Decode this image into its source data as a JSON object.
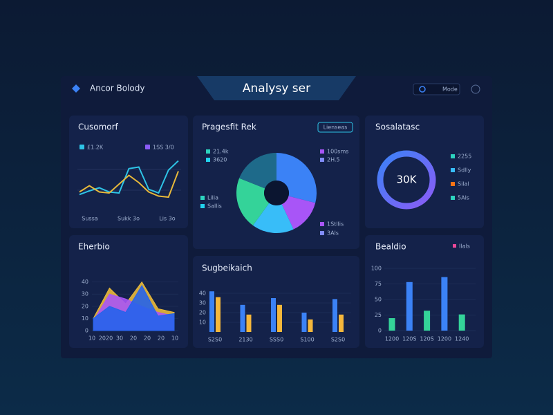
{
  "header": {
    "brand": "Ancor Bolody",
    "title": "Analysy ser",
    "toggle": "Mode"
  },
  "line_panel": {
    "title": "Cusomorf",
    "ylim": [
      0,
      100
    ],
    "series": [
      {
        "name": "£1.2K",
        "color": "#2ec4e6",
        "marker_color": "#2ec4e6",
        "values": [
          25,
          32,
          38,
          30,
          28,
          75,
          78,
          35,
          28,
          72,
          90
        ]
      },
      {
        "name": "1SS 3/0",
        "color": "#e8b93a",
        "marker_color": "#8b5cf6",
        "values": [
          30,
          42,
          30,
          28,
          45,
          62,
          48,
          30,
          22,
          20,
          70
        ]
      }
    ],
    "x_labels": [
      "Sussa",
      "Sukk 3o",
      "Lis 3o"
    ]
  },
  "pie_panel": {
    "title": "Pragesfit Rek",
    "button": "Lienseas",
    "slices": [
      {
        "color": "#3b82f6",
        "value": 29
      },
      {
        "color": "#a855f7",
        "value": 14
      },
      {
        "color": "#38bdf8",
        "value": 17
      },
      {
        "color": "#34d399",
        "value": 21
      },
      {
        "color": "#1e6a8a",
        "value": 19
      }
    ],
    "legend_left": [
      {
        "label": "21.4k",
        "color": "#2dd4bf"
      },
      {
        "label": "3620",
        "color": "#22d3ee"
      },
      {
        "label": "Lilia",
        "color": "#2dd4bf"
      },
      {
        "label": "Sallis",
        "color": "#22d3ee"
      }
    ],
    "legend_right": [
      {
        "label": "100sms",
        "color": "#a855f7"
      },
      {
        "label": "2H.5",
        "color": "#818cf8"
      },
      {
        "label": "1Stllis",
        "color": "#a855f7"
      },
      {
        "label": "3Als",
        "color": "#818cf8"
      }
    ]
  },
  "kpi_panel": {
    "title": "Sosalatasc",
    "value": "30K",
    "legend": [
      {
        "label": "2255",
        "color": "#2dd4bf"
      },
      {
        "label": "Sdlly",
        "color": "#38bdf8"
      },
      {
        "label": "Silal",
        "color": "#f97316"
      },
      {
        "label": "5Als",
        "color": "#2dd4bf"
      }
    ]
  },
  "area_panel": {
    "title": "Eherbio",
    "ylim": [
      0,
      50
    ],
    "yticks": [
      0,
      10,
      20,
      30,
      40
    ],
    "x_labels": [
      "10",
      "2020",
      "30",
      "20",
      "20",
      "20",
      "10"
    ],
    "series": [
      {
        "color": "#e8b93a",
        "values": [
          10,
          35,
          22,
          40,
          18,
          15
        ]
      },
      {
        "color": "#a855f7",
        "values": [
          8,
          30,
          26,
          20,
          15,
          12
        ]
      },
      {
        "color": "#2563eb",
        "values": [
          10,
          20,
          15,
          37,
          12,
          14
        ]
      }
    ]
  },
  "group_panel": {
    "title": "Sugbeikaich",
    "ylim": [
      0,
      50
    ],
    "yticks": [
      10,
      20,
      30,
      40
    ],
    "categories": [
      "S2S0",
      "2130",
      "SSS0",
      "S100",
      "S2S0"
    ],
    "series": [
      {
        "color": "#3b82f6",
        "values": [
          42,
          28,
          35,
          20,
          34
        ]
      },
      {
        "color": "#f5b73b",
        "values": [
          36,
          18,
          28,
          13,
          18
        ]
      }
    ]
  },
  "bar_panel": {
    "title": "Bealdio",
    "legend": {
      "label": "Ilals",
      "color": "#ec4899"
    },
    "ylim": [
      0,
      100
    ],
    "yticks": [
      0,
      25,
      50,
      75,
      100
    ],
    "categories": [
      "1200",
      "120S",
      "120S",
      "1200",
      "1240"
    ],
    "values": [
      20,
      78,
      32,
      86,
      26
    ],
    "colors": [
      "#34d399",
      "#3b82f6",
      "#34d399",
      "#3b82f6",
      "#34d399"
    ]
  }
}
